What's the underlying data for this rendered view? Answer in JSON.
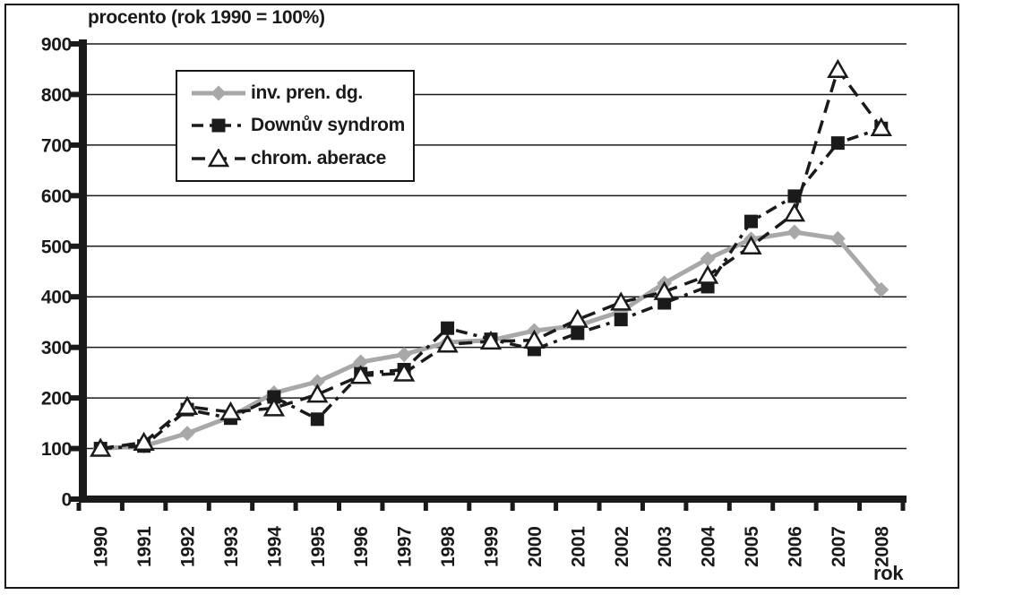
{
  "figure": {
    "title": "procento (rok 1990 = 100%)",
    "x_axis_title": "rok"
  },
  "colors": {
    "background": "#ffffff",
    "frame": "#161616",
    "axis": "#1a1a1a",
    "gridline": "#1a1a1a",
    "text": "#1a1a1a",
    "gray_series": "#a8a8a8",
    "black_series": "#1a1a1a"
  },
  "chart_data": {
    "type": "line",
    "title": "procento (rok 1990 = 100%)",
    "xlabel": "rok",
    "ylabel": "",
    "ylim": [
      0,
      900
    ],
    "ytick_step": 100,
    "grid": true,
    "legend_position": "top-left inside plot area",
    "categories": [
      "1990",
      "1991",
      "1992",
      "1993",
      "1994",
      "1995",
      "1996",
      "1997",
      "1998",
      "1999",
      "2000",
      "2001",
      "2002",
      "2003",
      "2004",
      "2005",
      "2006",
      "2007",
      "2008"
    ],
    "series": [
      {
        "name": "inv. pren. dg.",
        "marker": "diamond-filled",
        "line": "solid-thick",
        "color": "#a8a8a8",
        "values": [
          100,
          105,
          130,
          163,
          210,
          232,
          271,
          286,
          310,
          314,
          333,
          343,
          371,
          427,
          475,
          514,
          528,
          515,
          414
        ]
      },
      {
        "name": "Downův syndrom",
        "marker": "square-filled",
        "line": "dash-dot",
        "color": "#1a1a1a",
        "values": [
          100,
          105,
          177,
          160,
          202,
          158,
          248,
          256,
          338,
          316,
          296,
          328,
          355,
          388,
          420,
          549,
          599,
          704,
          733
        ]
      },
      {
        "name": "chrom. aberace",
        "marker": "triangle-open",
        "line": "dash",
        "color": "#1a1a1a",
        "values": [
          100,
          112,
          183,
          172,
          180,
          207,
          244,
          249,
          306,
          312,
          314,
          355,
          389,
          410,
          442,
          500,
          565,
          849,
          734
        ]
      }
    ]
  }
}
